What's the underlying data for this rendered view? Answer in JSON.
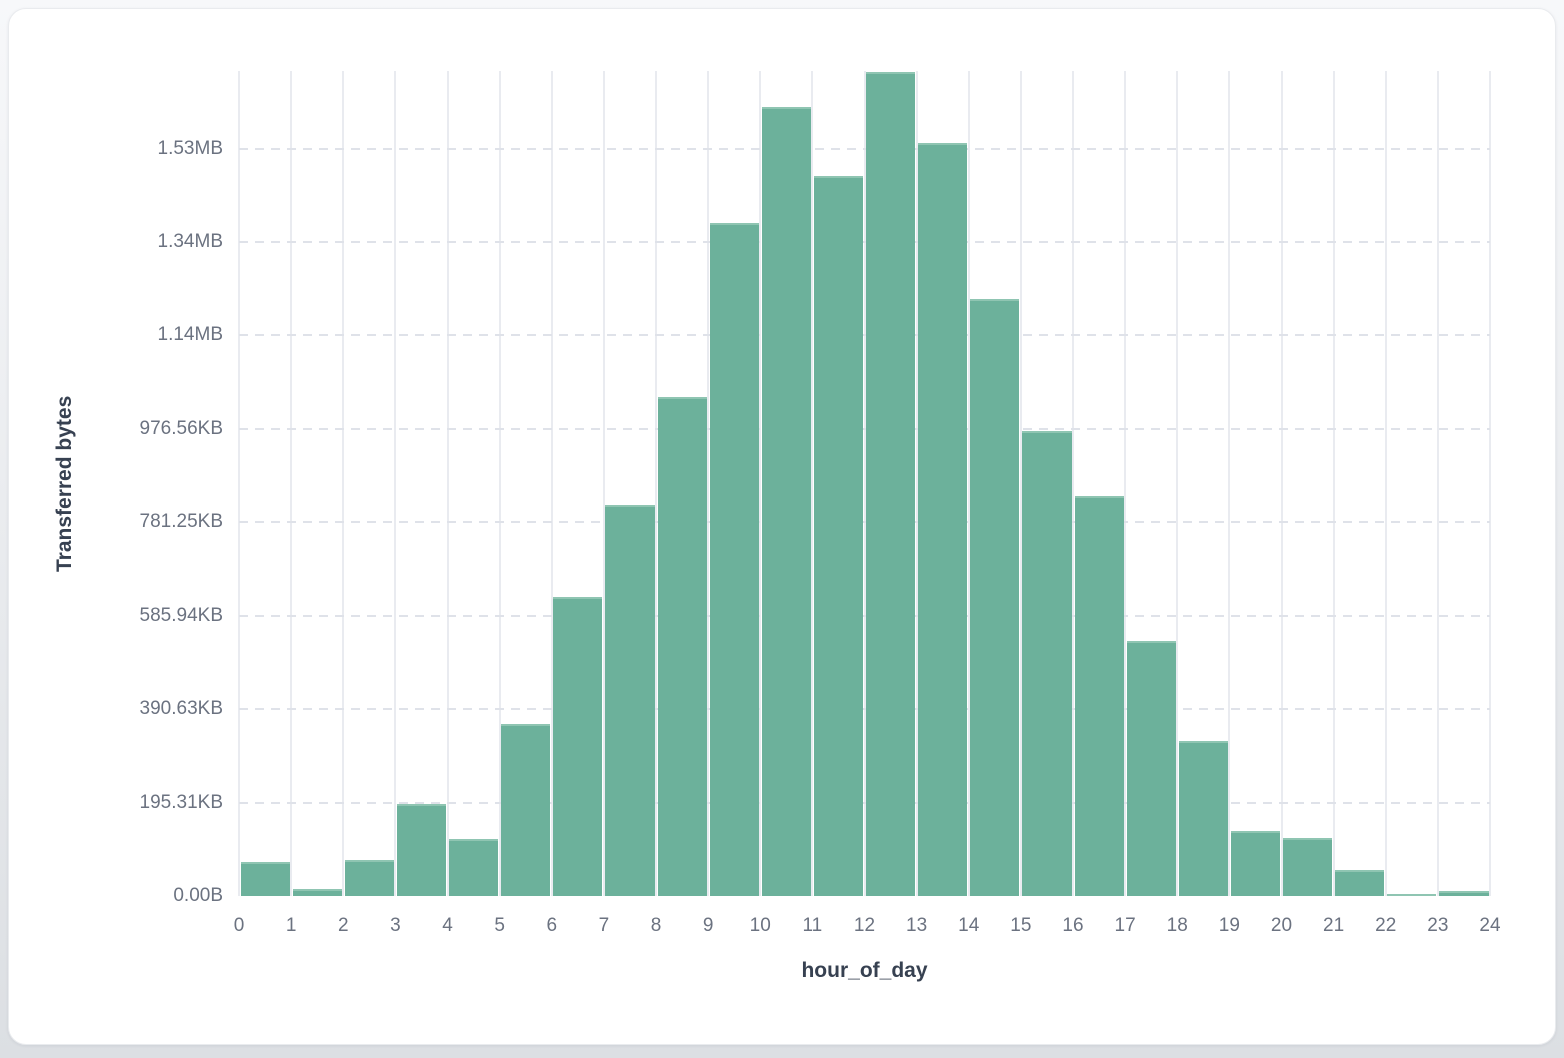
{
  "chart_data": {
    "type": "bar",
    "title": "",
    "xlabel": "hour_of_day",
    "ylabel": "Transferred bytes",
    "bin_width_hours": 1,
    "categories": [
      0,
      1,
      2,
      3,
      4,
      5,
      6,
      7,
      8,
      9,
      10,
      11,
      12,
      13,
      14,
      15,
      16,
      17,
      18,
      19,
      20,
      21,
      22,
      23
    ],
    "values": [
      72800,
      15000,
      77100,
      195900,
      123100,
      368300,
      640300,
      837300,
      1068500,
      1441100,
      1689500,
      1541800,
      1764500,
      1612400,
      1278400,
      995700,
      856500,
      545000,
      331900,
      139200,
      124200,
      55700,
      4800,
      11800
    ],
    "values_unit": "bytes",
    "x_axis": {
      "range": [
        0,
        24
      ],
      "tick_labels": [
        "0",
        "1",
        "2",
        "3",
        "4",
        "5",
        "6",
        "7",
        "8",
        "9",
        "10",
        "11",
        "12",
        "13",
        "14",
        "15",
        "16",
        "17",
        "18",
        "19",
        "20",
        "21",
        "22",
        "23",
        "24"
      ]
    },
    "y_axis": {
      "range_bytes": [
        0,
        1766000
      ],
      "tick_values_bytes": [
        0,
        200000,
        400000,
        600000,
        800000,
        1000000,
        1200000,
        1400000,
        1600000
      ],
      "tick_labels": [
        "0.00B",
        "195.31KB",
        "390.63KB",
        "585.94KB",
        "781.25KB",
        "976.56KB",
        "1.14MB",
        "1.34MB",
        "1.53MB"
      ]
    },
    "grid": {
      "vertical": "solid",
      "horizontal": "dashed",
      "legend": "none"
    }
  },
  "colors": {
    "bar_fill": "#6cb19b",
    "bar_top_edge": "#8fc5b2",
    "grid_vertical": "#e9ebf0",
    "grid_horizontal": "#dfe2e9",
    "tick_label": "#6b7280",
    "axis_title": "#374151",
    "card_bg": "#ffffff",
    "card_border": "#e9ebee",
    "page_bg_top": "#f7f8fa",
    "page_bg_bottom": "#dcdfe3"
  }
}
